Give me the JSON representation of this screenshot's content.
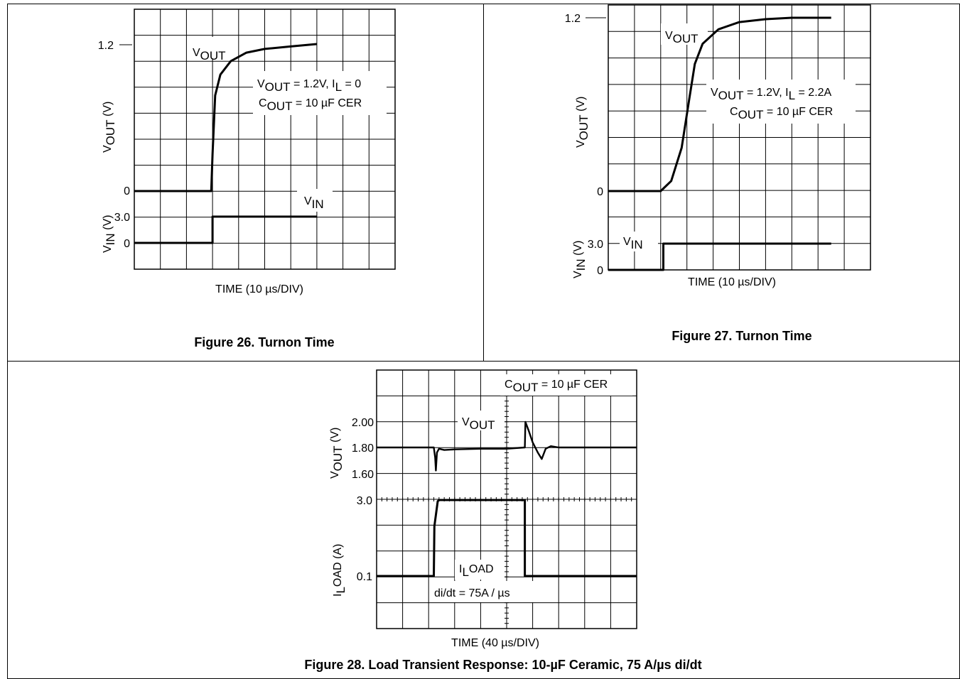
{
  "chart_data": [
    {
      "type": "line",
      "caption": "Figure 26. Turnon Time",
      "xlabel": "TIME (10 µs/DIV)",
      "annotation": [
        "VOUT = 1.2V, IL = 0",
        "COUT = 10 µF CER"
      ],
      "panels": [
        {
          "ylabel": "VOUT (V)",
          "ticks": [
            "1.2",
            "0"
          ],
          "series_label": "VOUT",
          "x": [
            0,
            2.95,
            3.0,
            3.1,
            3.3,
            3.7,
            4.3,
            5,
            6,
            7
          ],
          "y": [
            0,
            0,
            0.3,
            0.78,
            0.95,
            1.06,
            1.13,
            1.16,
            1.18,
            1.2
          ]
        },
        {
          "ylabel": "VIN (V)",
          "ticks": [
            "3.0",
            "0"
          ],
          "series_label": "VIN",
          "x": [
            0,
            3.0,
            3.0,
            7
          ],
          "y": [
            0,
            0,
            3.0,
            3.0
          ]
        }
      ]
    },
    {
      "type": "line",
      "caption": "Figure 27. Turnon Time",
      "xlabel": "TIME (10 µs/DIV)",
      "annotation": [
        "VOUT = 1.2V, IL = 2.2A",
        "COUT = 10 µF CER"
      ],
      "panels": [
        {
          "ylabel": "VOUT (V)",
          "ticks": [
            "1.2",
            "0"
          ],
          "series_label": "VOUT",
          "x": [
            0,
            2.0,
            2.4,
            2.8,
            3.1,
            3.3,
            3.6,
            4.2,
            5,
            6,
            7,
            8.5
          ],
          "y": [
            0,
            0,
            0.07,
            0.3,
            0.65,
            0.88,
            1.02,
            1.12,
            1.17,
            1.19,
            1.2,
            1.2
          ]
        },
        {
          "ylabel": "VIN (V)",
          "ticks": [
            "3.0",
            "0"
          ],
          "series_label": "VIN",
          "x": [
            0,
            2.1,
            2.1,
            8.5
          ],
          "y": [
            0,
            0,
            3.0,
            3.0
          ]
        }
      ]
    },
    {
      "type": "line",
      "caption": "Figure 28. Load Transient Response: 10-µF Ceramic, 75 A/µs di/dt",
      "xlabel": "TIME (40 µs/DIV)",
      "annotation": [
        "COUT = 10 µF CER",
        "di/dt = 75A / µs"
      ],
      "panels": [
        {
          "ylabel": "VOUT (V)",
          "ticks": [
            "2.00",
            "1.80",
            "1.60"
          ],
          "series_label": "VOUT",
          "x": [
            0,
            2.2,
            2.25,
            2.28,
            2.32,
            2.4,
            2.6,
            3,
            4,
            5,
            5.7,
            5.72,
            5.85,
            6.0,
            6.2,
            6.35,
            6.5,
            6.7,
            7,
            8,
            10
          ],
          "y": [
            1.8,
            1.8,
            1.72,
            1.62,
            1.76,
            1.79,
            1.78,
            1.785,
            1.79,
            1.79,
            1.8,
            2.0,
            1.93,
            1.84,
            1.76,
            1.71,
            1.79,
            1.81,
            1.8,
            1.8,
            1.8
          ]
        },
        {
          "ylabel": "ILOAD (A)",
          "ticks": [
            "3.0",
            "0.1"
          ],
          "series_label": "ILOAD",
          "x": [
            0,
            2.2,
            2.22,
            2.35,
            2.4,
            5.7,
            5.7,
            10
          ],
          "y": [
            0.1,
            0.1,
            2.0,
            2.95,
            3.0,
            3.0,
            0.1,
            0.1
          ]
        }
      ]
    }
  ]
}
